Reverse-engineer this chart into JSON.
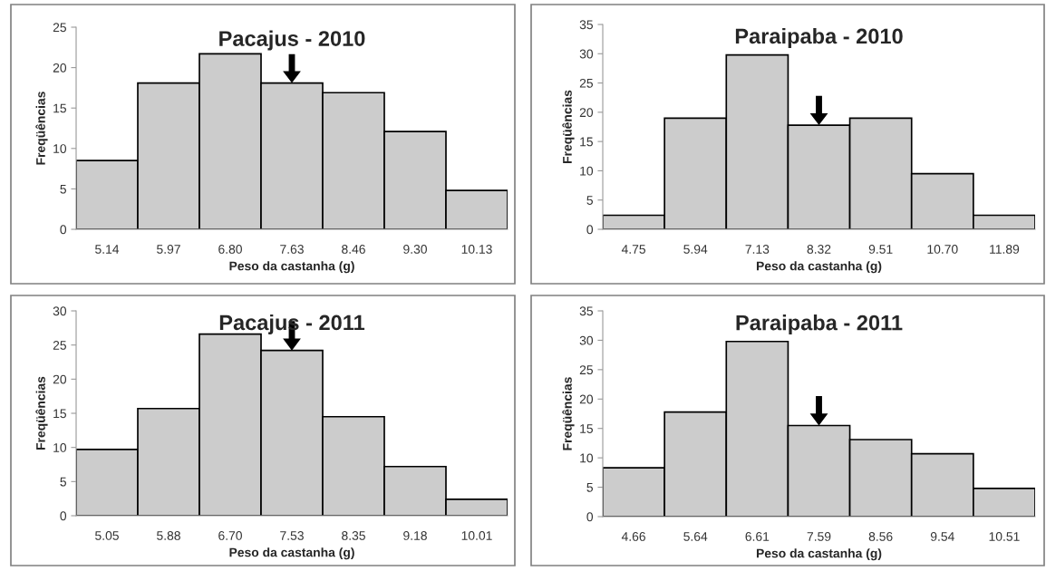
{
  "chart_data": [
    {
      "type": "bar",
      "title": "Pacajus - 2010",
      "xlabel": "Peso da castanha (g)",
      "ylabel": "Freqüências",
      "categories": [
        "5.14",
        "5.97",
        "6.80",
        "7.63",
        "8.46",
        "9.30",
        "10.13"
      ],
      "values": [
        8.5,
        18.1,
        21.7,
        18.1,
        16.9,
        12.1,
        4.8
      ],
      "color": "#cccccc",
      "ylim": [
        0,
        25
      ],
      "yticks": [
        0,
        5,
        10,
        15,
        20,
        25
      ],
      "grid": false
    },
    {
      "type": "bar",
      "title": "Paraipaba - 2010",
      "xlabel": "Peso da castanha (g)",
      "ylabel": "Freqüências",
      "categories": [
        "4.75",
        "5.94",
        "7.13",
        "8.32",
        "9.51",
        "10.70",
        "11.89"
      ],
      "values": [
        2.4,
        19.0,
        29.8,
        17.8,
        19.0,
        9.5,
        2.4
      ],
      "color": "#cccccc",
      "ylim": [
        0,
        35
      ],
      "yticks": [
        0,
        5,
        10,
        15,
        20,
        25,
        30,
        35
      ],
      "grid": false
    },
    {
      "type": "bar",
      "title": "Pacajus - 2011",
      "xlabel": "Peso da castanha (g)",
      "ylabel": "Freqüências",
      "categories": [
        "5.05",
        "5.88",
        "6.70",
        "7.53",
        "8.35",
        "9.18",
        "10.01"
      ],
      "values": [
        9.7,
        15.7,
        26.6,
        24.2,
        14.5,
        7.2,
        2.4
      ],
      "color": "#cccccc",
      "ylim": [
        0,
        30
      ],
      "yticks": [
        0,
        5,
        10,
        15,
        20,
        25,
        30
      ],
      "grid": false
    },
    {
      "type": "bar",
      "title": "Paraipaba - 2011",
      "xlabel": "Peso da castanha (g)",
      "ylabel": "Freqüências",
      "categories": [
        "4.66",
        "5.64",
        "6.61",
        "7.59",
        "8.56",
        "9.54",
        "10.51"
      ],
      "values": [
        8.3,
        17.8,
        29.8,
        15.5,
        13.1,
        10.7,
        4.8
      ],
      "color": "#cccccc",
      "ylim": [
        0,
        35
      ],
      "yticks": [
        0,
        5,
        10,
        15,
        20,
        25,
        30,
        35
      ],
      "grid": false
    }
  ]
}
